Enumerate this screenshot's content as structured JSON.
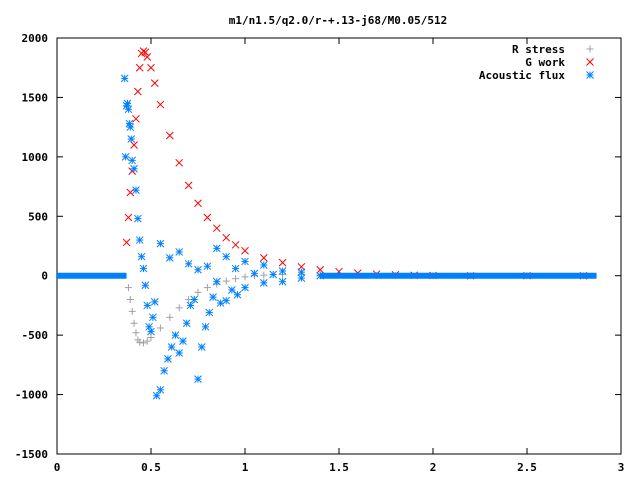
{
  "chart_data": {
    "type": "scatter",
    "title": "m1/n1.5/q2.0/r-+.13-j68/M0.05/512",
    "xlabel": "",
    "ylabel": "",
    "xlim": [
      0,
      3
    ],
    "ylim": [
      -1500,
      2000
    ],
    "xticks": [
      {
        "value": 0,
        "label": "0"
      },
      {
        "value": 0.5,
        "label": "0.5"
      },
      {
        "value": 1,
        "label": "1"
      },
      {
        "value": 1.5,
        "label": "1.5"
      },
      {
        "value": 2,
        "label": "2"
      },
      {
        "value": 2.5,
        "label": "2.5"
      },
      {
        "value": 3,
        "label": "3"
      }
    ],
    "yticks": [
      {
        "value": -1500,
        "label": "-1500"
      },
      {
        "value": -1000,
        "label": "-1000"
      },
      {
        "value": -500,
        "label": "-500"
      },
      {
        "value": 0,
        "label": "0"
      },
      {
        "value": 500,
        "label": "500"
      },
      {
        "value": 1000,
        "label": "1000"
      },
      {
        "value": 1500,
        "label": "1500"
      },
      {
        "value": 2000,
        "label": "2000"
      }
    ],
    "grid": false,
    "legend_position": "top-right",
    "series": [
      {
        "name": "R stress",
        "marker": "plus",
        "color": "#a0a0a4",
        "points": [
          [
            0.38,
            -100
          ],
          [
            0.39,
            -200
          ],
          [
            0.4,
            -300
          ],
          [
            0.41,
            -400
          ],
          [
            0.42,
            -480
          ],
          [
            0.43,
            -540
          ],
          [
            0.44,
            -560
          ],
          [
            0.46,
            -565
          ],
          [
            0.48,
            -550
          ],
          [
            0.5,
            -520
          ],
          [
            0.55,
            -440
          ],
          [
            0.6,
            -350
          ],
          [
            0.65,
            -270
          ],
          [
            0.7,
            -200
          ],
          [
            0.75,
            -140
          ],
          [
            0.8,
            -100
          ],
          [
            0.85,
            -70
          ],
          [
            0.9,
            -45
          ],
          [
            0.95,
            -25
          ],
          [
            1.0,
            -10
          ],
          [
            1.05,
            0
          ],
          [
            1.1,
            5
          ],
          [
            1.2,
            10
          ],
          [
            1.3,
            10
          ],
          [
            1.4,
            8
          ],
          [
            1.5,
            6
          ],
          [
            1.6,
            4
          ],
          [
            1.7,
            2
          ],
          [
            1.8,
            1
          ],
          [
            2.0,
            0
          ],
          [
            2.2,
            0
          ],
          [
            2.5,
            0
          ],
          [
            2.8,
            0
          ]
        ]
      },
      {
        "name": "G work",
        "marker": "cross",
        "color": "#ff0000",
        "points": [
          [
            0.37,
            280
          ],
          [
            0.38,
            490
          ],
          [
            0.39,
            700
          ],
          [
            0.4,
            880
          ],
          [
            0.41,
            1100
          ],
          [
            0.42,
            1320
          ],
          [
            0.43,
            1550
          ],
          [
            0.44,
            1750
          ],
          [
            0.45,
            1870
          ],
          [
            0.46,
            1890
          ],
          [
            0.47,
            1880
          ],
          [
            0.48,
            1840
          ],
          [
            0.5,
            1750
          ],
          [
            0.52,
            1620
          ],
          [
            0.55,
            1440
          ],
          [
            0.6,
            1180
          ],
          [
            0.65,
            950
          ],
          [
            0.7,
            760
          ],
          [
            0.75,
            610
          ],
          [
            0.8,
            490
          ],
          [
            0.85,
            400
          ],
          [
            0.9,
            320
          ],
          [
            0.95,
            260
          ],
          [
            1.0,
            210
          ],
          [
            1.1,
            150
          ],
          [
            1.2,
            110
          ],
          [
            1.3,
            75
          ],
          [
            1.4,
            50
          ],
          [
            1.5,
            35
          ],
          [
            1.6,
            22
          ],
          [
            1.7,
            14
          ],
          [
            1.8,
            8
          ],
          [
            1.9,
            4
          ],
          [
            2.0,
            2
          ],
          [
            2.2,
            0
          ],
          [
            2.5,
            0
          ],
          [
            2.8,
            0
          ]
        ]
      },
      {
        "name": "Acoustic flux",
        "marker": "star",
        "color": "#0080ff",
        "points": [
          [
            0.36,
            1660
          ],
          [
            0.365,
            1000
          ],
          [
            0.37,
            1430
          ],
          [
            0.375,
            1450
          ],
          [
            0.38,
            1400
          ],
          [
            0.385,
            1280
          ],
          [
            0.39,
            1250
          ],
          [
            0.395,
            1150
          ],
          [
            0.4,
            970
          ],
          [
            0.41,
            900
          ],
          [
            0.42,
            720
          ],
          [
            0.43,
            480
          ],
          [
            0.44,
            300
          ],
          [
            0.45,
            160
          ],
          [
            0.46,
            60
          ],
          [
            0.47,
            -80
          ],
          [
            0.48,
            -250
          ],
          [
            0.49,
            -430
          ],
          [
            0.5,
            -470
          ],
          [
            0.51,
            -350
          ],
          [
            0.52,
            -220
          ],
          [
            0.53,
            -1010
          ],
          [
            0.55,
            -960
          ],
          [
            0.57,
            -800
          ],
          [
            0.59,
            -700
          ],
          [
            0.61,
            -600
          ],
          [
            0.63,
            -500
          ],
          [
            0.65,
            -650
          ],
          [
            0.67,
            -550
          ],
          [
            0.69,
            -400
          ],
          [
            0.71,
            -250
          ],
          [
            0.73,
            -200
          ],
          [
            0.75,
            -870
          ],
          [
            0.77,
            -600
          ],
          [
            0.79,
            -430
          ],
          [
            0.81,
            -310
          ],
          [
            0.83,
            -180
          ],
          [
            0.85,
            -50
          ],
          [
            0.87,
            -230
          ],
          [
            0.9,
            -210
          ],
          [
            0.93,
            -120
          ],
          [
            0.96,
            -160
          ],
          [
            1.0,
            -100
          ],
          [
            1.05,
            20
          ],
          [
            1.1,
            -60
          ],
          [
            1.15,
            10
          ],
          [
            1.2,
            -50
          ],
          [
            1.3,
            -20
          ],
          [
            1.4,
            0
          ],
          [
            0.55,
            270
          ],
          [
            0.6,
            150
          ],
          [
            0.65,
            200
          ],
          [
            0.7,
            100
          ],
          [
            0.75,
            50
          ],
          [
            0.8,
            80
          ],
          [
            0.85,
            230
          ],
          [
            0.9,
            160
          ],
          [
            0.95,
            60
          ],
          [
            1.0,
            120
          ],
          [
            1.1,
            90
          ],
          [
            1.2,
            40
          ],
          [
            1.3,
            30
          ]
        ],
        "baseline_segments": [
          {
            "x_start": 0.0,
            "x_end": 0.37,
            "y": 0
          },
          {
            "x_start": 1.4,
            "x_end": 2.87,
            "y": 0
          }
        ]
      }
    ]
  }
}
